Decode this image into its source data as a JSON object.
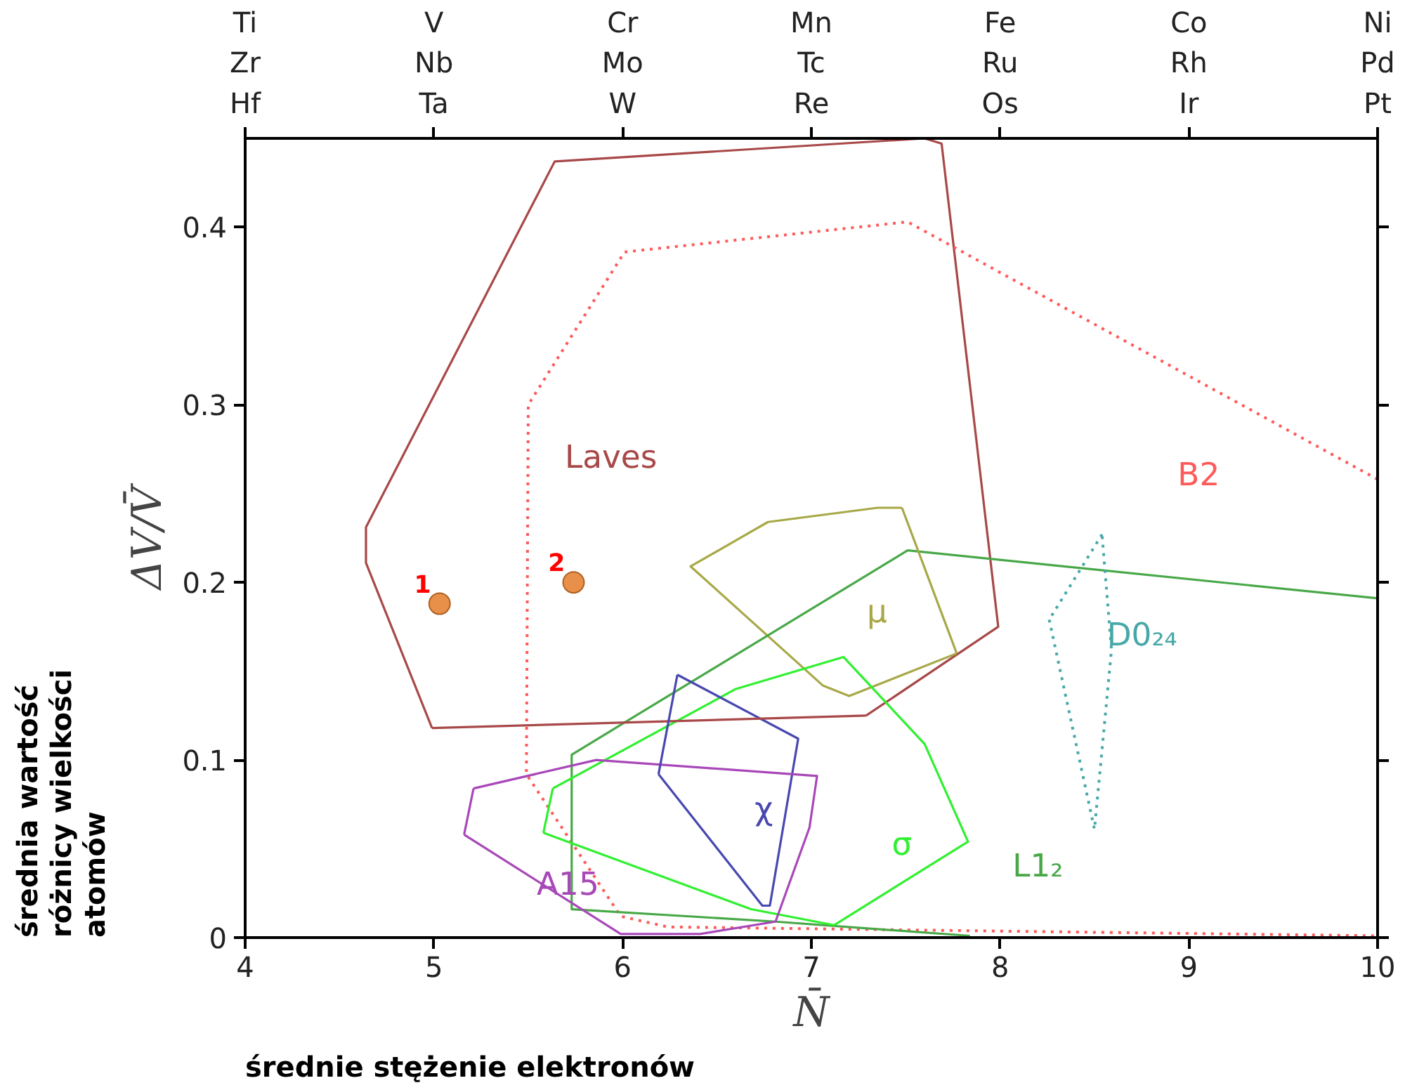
{
  "chart_data": {
    "type": "line",
    "xlabel": "N̄",
    "ylabel": "ΔV/V̄",
    "xlim": [
      4,
      10
    ],
    "xticks": [
      4,
      5,
      6,
      7,
      8,
      9,
      10
    ],
    "ylim": [
      0,
      0.45
    ],
    "yticks": [
      0,
      0.1,
      0.2,
      0.3,
      0.4
    ],
    "grid": false,
    "marker": "none",
    "series": [
      {
        "name": "Laves",
        "color": "#a84848",
        "line_style": "solid",
        "x": [
          4.99,
          4.64,
          4.64,
          5.64,
          7.6,
          7.69,
          7.99,
          7.29
        ],
        "values": [
          0.118,
          0.211,
          0.231,
          0.437,
          0.45,
          0.447,
          0.175,
          0.125
        ]
      },
      {
        "name": "B2",
        "color": "#ff5a5a",
        "line_style": "dotted",
        "x": [
          10.0,
          7.51,
          6.01,
          5.5,
          5.49,
          5.99,
          6.24,
          10.0
        ],
        "values": [
          0.258,
          0.403,
          0.386,
          0.3,
          0.092,
          0.012,
          0.006,
          0.001
        ]
      },
      {
        "name": "μ",
        "color": "#a8a848",
        "line_style": "solid",
        "x": [
          7.77,
          7.2,
          7.06,
          6.36,
          6.77,
          7.35,
          7.48
        ],
        "values": [
          0.16,
          0.136,
          0.142,
          0.209,
          0.234,
          0.242,
          0.242
        ]
      },
      {
        "name": "L1₂",
        "color": "#48a848",
        "line_style": "solid",
        "x": [
          10.0,
          7.51,
          5.73,
          5.73,
          6.81,
          7.84
        ],
        "values": [
          0.191,
          0.218,
          0.103,
          0.016,
          0.009,
          0.001
        ]
      },
      {
        "name": "σ",
        "color": "#30f030",
        "line_style": "solid",
        "x": [
          5.63,
          6.6,
          7.17,
          7.6,
          7.83,
          7.12,
          6.68,
          5.58
        ],
        "values": [
          0.084,
          0.14,
          0.158,
          0.109,
          0.054,
          0.007,
          0.016,
          0.059
        ]
      },
      {
        "name": "χ",
        "color": "#4848b0",
        "line_style": "solid",
        "x": [
          6.29,
          6.93,
          6.78,
          6.74,
          6.19
        ],
        "values": [
          0.148,
          0.112,
          0.018,
          0.018,
          0.092
        ]
      },
      {
        "name": "A15",
        "color": "#a848b8",
        "line_style": "solid",
        "x": [
          5.16,
          5.99,
          6.41,
          6.81,
          6.99,
          7.03,
          5.86,
          5.21
        ],
        "values": [
          0.058,
          0.002,
          0.002,
          0.009,
          0.062,
          0.091,
          0.1,
          0.084
        ]
      },
      {
        "name": "D0₂₄",
        "color": "#48a8a8",
        "line_style": "dotted",
        "x": [
          8.26,
          8.5,
          8.59,
          8.54
        ],
        "values": [
          0.179,
          0.061,
          0.162,
          0.227
        ]
      },
      {
        "color": "#a84848",
        "line_style": "solid",
        "x": [
          7.29,
          4.99
        ],
        "values": [
          0.125,
          0.118
        ]
      },
      {
        "color": "#a8a848",
        "line_style": "solid",
        "x": [
          7.48,
          7.77
        ],
        "values": [
          0.242,
          0.16
        ]
      },
      {
        "color": "#30f030",
        "line_style": "solid",
        "x": [
          5.58,
          5.63
        ],
        "values": [
          0.059,
          0.084
        ]
      },
      {
        "color": "#4848b0",
        "line_style": "solid",
        "x": [
          6.19,
          6.29
        ],
        "values": [
          0.092,
          0.148
        ]
      },
      {
        "color": "#a848b8",
        "line_style": "solid",
        "x": [
          5.21,
          5.16
        ],
        "values": [
          0.084,
          0.058
        ]
      },
      {
        "color": "#48a8a8",
        "line_style": "dotted",
        "x": [
          8.54,
          8.26
        ],
        "values": [
          0.227,
          0.179
        ]
      },
      {
        "type": "scatter",
        "color": "#e8904a",
        "marker": "circle",
        "x": [
          5.03,
          5.74
        ],
        "values": [
          0.188,
          0.2
        ]
      }
    ],
    "annotations": [
      {
        "text": "1",
        "x": 5.03,
        "y": 0.188
      },
      {
        "text": "2",
        "x": 5.74,
        "y": 0.2
      },
      "Ti\nZr\nHf",
      "V\nNb\nTa",
      "Cr\nMo\nW",
      "Mn\nTc\nRe",
      "Fe\nRu\nOs",
      "Co\nRh\nIr",
      "Ni\nPd\nPt",
      "średnie stężenie elektronów",
      "średnia wartość\nróżnicy wielkości\natomów"
    ]
  }
}
